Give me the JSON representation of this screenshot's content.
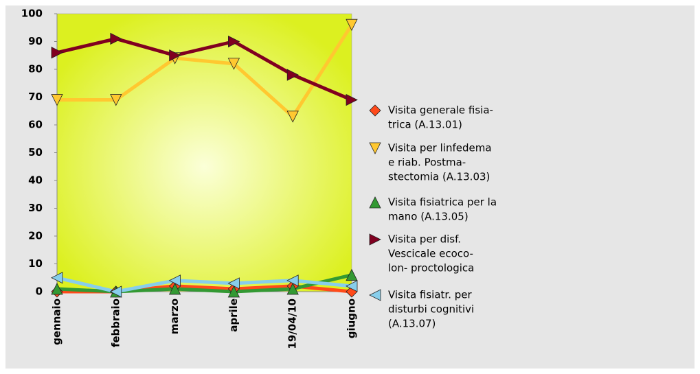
{
  "chart_data": {
    "type": "line",
    "categories": [
      "gennaio",
      "febbraio",
      "marzo",
      "aprile",
      "19/04/10",
      "giugno"
    ],
    "ylim": [
      0,
      100
    ],
    "yticks": [
      0,
      10,
      20,
      30,
      40,
      50,
      60,
      70,
      80,
      90,
      100
    ],
    "series": [
      {
        "name": [
          "Visita generale fisia-",
          "trica (A.13.01)"
        ],
        "color": "#ff4a1a",
        "marker": "diamond",
        "values": [
          0,
          0,
          2,
          1,
          2,
          0
        ]
      },
      {
        "name": [
          "Visita per linfedema",
          "e riab. Postma-",
          "stectomia (A.13.03)"
        ],
        "color": "#ffc830",
        "marker": "triangle-down",
        "values": [
          69,
          69,
          84,
          82,
          63,
          96
        ]
      },
      {
        "name": [
          "Visita fisiatrica per la",
          "mano (A.13.05)"
        ],
        "color": "#339933",
        "marker": "triangle-up",
        "values": [
          1,
          0,
          1,
          0,
          1,
          6
        ]
      },
      {
        "name": [
          "Visita per disf.",
          "Vescicale ecoco-",
          "lon- proctologica"
        ],
        "color": "#800020",
        "marker": "triangle-right",
        "values": [
          86,
          91,
          85,
          90,
          78,
          69
        ]
      },
      {
        "name": [
          "Visita fisiatr. per",
          "disturbi cognitivi",
          "(A.13.07)"
        ],
        "color": "#87ceeb",
        "marker": "triangle-left",
        "values": [
          5,
          0,
          4,
          3,
          4,
          2
        ]
      }
    ]
  }
}
